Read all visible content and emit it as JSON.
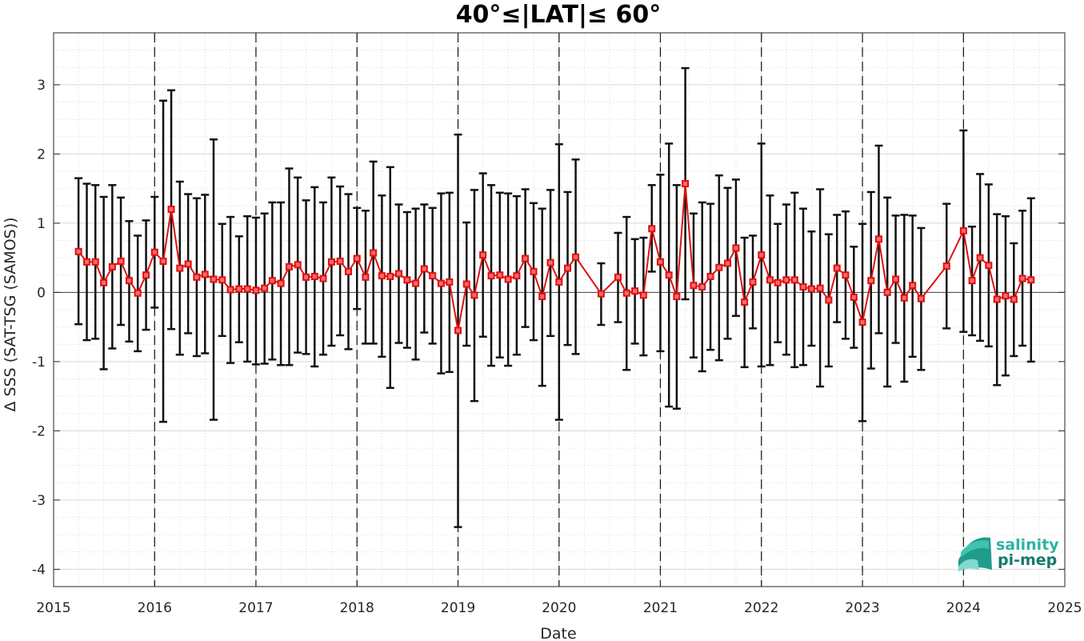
{
  "chart_data": {
    "type": "line",
    "title": "40°≤|LAT|≤ 60°",
    "xlabel": "Date",
    "ylabel": "Δ SSS (SAT-TSG (SAMOS))",
    "xlim": [
      "2015-01-01",
      "2025-01-01"
    ],
    "ylim": [
      -4.25,
      3.75
    ],
    "x_ticks": [
      "2015",
      "2016",
      "2017",
      "2018",
      "2019",
      "2020",
      "2021",
      "2022",
      "2023",
      "2024",
      "2025"
    ],
    "y_ticks": [
      -4,
      -3,
      -2,
      -1,
      0,
      1,
      2,
      3
    ],
    "grid": "minor dotted",
    "reference_line": 0,
    "year_markers": [
      "2016",
      "2017",
      "2018",
      "2019",
      "2020",
      "2021",
      "2022",
      "2023",
      "2024"
    ],
    "colors": {
      "mean": "#dd1111",
      "errorbar": "#111111",
      "zero_line": "#444444"
    },
    "series": [
      {
        "style": "red line with square markers and black error bars (mean ± std)",
        "points": [
          {
            "x": "2015-04",
            "y": 0.59,
            "lo": -0.46,
            "hi": 1.65
          },
          {
            "x": "2015-05",
            "y": 0.44,
            "lo": -0.69,
            "hi": 1.57
          },
          {
            "x": "2015-06",
            "y": 0.44,
            "lo": -0.67,
            "hi": 1.55
          },
          {
            "x": "2015-07",
            "y": 0.14,
            "lo": -1.11,
            "hi": 1.38
          },
          {
            "x": "2015-08",
            "y": 0.37,
            "lo": -0.81,
            "hi": 1.55
          },
          {
            "x": "2015-09",
            "y": 0.45,
            "lo": -0.47,
            "hi": 1.37
          },
          {
            "x": "2015-10",
            "y": 0.17,
            "lo": -0.71,
            "hi": 1.03
          },
          {
            "x": "2015-11",
            "y": -0.01,
            "lo": -0.85,
            "hi": 0.82
          },
          {
            "x": "2015-12",
            "y": 0.25,
            "lo": -0.54,
            "hi": 1.04
          },
          {
            "x": "2016-01",
            "y": 0.58,
            "lo": -0.22,
            "hi": 1.38
          },
          {
            "x": "2016-02",
            "y": 0.45,
            "lo": -1.87,
            "hi": 2.77
          },
          {
            "x": "2016-03",
            "y": 1.2,
            "lo": -0.53,
            "hi": 2.92
          },
          {
            "x": "2016-04",
            "y": 0.35,
            "lo": -0.9,
            "hi": 1.6
          },
          {
            "x": "2016-05",
            "y": 0.41,
            "lo": -0.59,
            "hi": 1.42
          },
          {
            "x": "2016-06",
            "y": 0.22,
            "lo": -0.92,
            "hi": 1.36
          },
          {
            "x": "2016-07",
            "y": 0.26,
            "lo": -0.88,
            "hi": 1.41
          },
          {
            "x": "2016-08",
            "y": 0.19,
            "lo": -1.84,
            "hi": 2.21
          },
          {
            "x": "2016-09",
            "y": 0.18,
            "lo": -0.63,
            "hi": 0.99
          },
          {
            "x": "2016-10",
            "y": 0.04,
            "lo": -1.02,
            "hi": 1.09
          },
          {
            "x": "2016-11",
            "y": 0.05,
            "lo": -0.72,
            "hi": 0.81
          },
          {
            "x": "2016-12",
            "y": 0.05,
            "lo": -1.0,
            "hi": 1.1
          },
          {
            "x": "2017-01",
            "y": 0.03,
            "lo": -1.04,
            "hi": 1.08
          },
          {
            "x": "2017-02",
            "y": 0.06,
            "lo": -1.03,
            "hi": 1.14
          },
          {
            "x": "2017-03",
            "y": 0.17,
            "lo": -0.97,
            "hi": 1.3
          },
          {
            "x": "2017-04",
            "y": 0.13,
            "lo": -1.05,
            "hi": 1.3
          },
          {
            "x": "2017-05",
            "y": 0.37,
            "lo": -1.05,
            "hi": 1.79
          },
          {
            "x": "2017-06",
            "y": 0.4,
            "lo": -0.87,
            "hi": 1.66
          },
          {
            "x": "2017-07",
            "y": 0.22,
            "lo": -0.89,
            "hi": 1.33
          },
          {
            "x": "2017-08",
            "y": 0.23,
            "lo": -1.07,
            "hi": 1.52
          },
          {
            "x": "2017-09",
            "y": 0.2,
            "lo": -0.9,
            "hi": 1.3
          },
          {
            "x": "2017-10",
            "y": 0.44,
            "lo": -0.77,
            "hi": 1.66
          },
          {
            "x": "2017-11",
            "y": 0.45,
            "lo": -0.62,
            "hi": 1.53
          },
          {
            "x": "2017-12",
            "y": 0.3,
            "lo": -0.82,
            "hi": 1.42
          },
          {
            "x": "2018-01",
            "y": 0.49,
            "lo": -0.24,
            "hi": 1.22
          },
          {
            "x": "2018-02",
            "y": 0.22,
            "lo": -0.74,
            "hi": 1.18
          },
          {
            "x": "2018-03",
            "y": 0.57,
            "lo": -0.74,
            "hi": 1.89
          },
          {
            "x": "2018-04",
            "y": 0.24,
            "lo": -0.93,
            "hi": 1.4
          },
          {
            "x": "2018-05",
            "y": 0.23,
            "lo": -1.38,
            "hi": 1.81
          },
          {
            "x": "2018-06",
            "y": 0.27,
            "lo": -0.73,
            "hi": 1.27
          },
          {
            "x": "2018-07",
            "y": 0.18,
            "lo": -0.8,
            "hi": 1.16
          },
          {
            "x": "2018-08",
            "y": 0.13,
            "lo": -0.97,
            "hi": 1.21
          },
          {
            "x": "2018-09",
            "y": 0.34,
            "lo": -0.58,
            "hi": 1.27
          },
          {
            "x": "2018-10",
            "y": 0.24,
            "lo": -0.74,
            "hi": 1.22
          },
          {
            "x": "2018-11",
            "y": 0.13,
            "lo": -1.17,
            "hi": 1.43
          },
          {
            "x": "2018-12",
            "y": 0.15,
            "lo": -1.15,
            "hi": 1.44
          },
          {
            "x": "2019-01",
            "y": -0.55,
            "lo": -3.39,
            "hi": 2.28
          },
          {
            "x": "2019-02",
            "y": 0.12,
            "lo": -0.77,
            "hi": 1.01
          },
          {
            "x": "2019-03",
            "y": -0.04,
            "lo": -1.57,
            "hi": 1.48
          },
          {
            "x": "2019-04",
            "y": 0.54,
            "lo": -0.64,
            "hi": 1.72
          },
          {
            "x": "2019-05",
            "y": 0.24,
            "lo": -1.06,
            "hi": 1.55
          },
          {
            "x": "2019-06",
            "y": 0.25,
            "lo": -0.94,
            "hi": 1.44
          },
          {
            "x": "2019-07",
            "y": 0.19,
            "lo": -1.06,
            "hi": 1.43
          },
          {
            "x": "2019-08",
            "y": 0.24,
            "lo": -0.9,
            "hi": 1.39
          },
          {
            "x": "2019-09",
            "y": 0.49,
            "lo": -0.5,
            "hi": 1.49
          },
          {
            "x": "2019-10",
            "y": 0.3,
            "lo": -0.69,
            "hi": 1.29
          },
          {
            "x": "2019-11",
            "y": -0.06,
            "lo": -1.35,
            "hi": 1.21
          },
          {
            "x": "2019-12",
            "y": 0.43,
            "lo": -0.63,
            "hi": 1.48
          },
          {
            "x": "2020-01",
            "y": 0.15,
            "lo": -1.84,
            "hi": 2.14
          },
          {
            "x": "2020-02",
            "y": 0.35,
            "lo": -0.76,
            "hi": 1.45
          },
          {
            "x": "2020-03",
            "y": 0.51,
            "lo": -0.89,
            "hi": 1.92
          },
          {
            "x": "2020-06",
            "y": -0.02,
            "lo": -0.47,
            "hi": 0.42
          },
          {
            "x": "2020-08",
            "y": 0.22,
            "lo": -0.43,
            "hi": 0.86
          },
          {
            "x": "2020-09",
            "y": -0.01,
            "lo": -1.12,
            "hi": 1.09
          },
          {
            "x": "2020-10",
            "y": 0.02,
            "lo": -0.74,
            "hi": 0.77
          },
          {
            "x": "2020-11",
            "y": -0.04,
            "lo": -0.91,
            "hi": 0.79
          },
          {
            "x": "2020-12",
            "y": 0.92,
            "lo": 0.3,
            "hi": 1.55
          },
          {
            "x": "2021-01",
            "y": 0.44,
            "lo": -0.85,
            "hi": 1.7
          },
          {
            "x": "2021-02",
            "y": 0.25,
            "lo": -1.65,
            "hi": 2.15
          },
          {
            "x": "2021-03",
            "y": -0.06,
            "lo": -1.68,
            "hi": 1.55
          },
          {
            "x": "2021-04",
            "y": 1.57,
            "lo": -0.1,
            "hi": 3.24
          },
          {
            "x": "2021-05",
            "y": 0.1,
            "lo": -0.94,
            "hi": 1.14
          },
          {
            "x": "2021-06",
            "y": 0.08,
            "lo": -1.14,
            "hi": 1.3
          },
          {
            "x": "2021-07",
            "y": 0.23,
            "lo": -0.83,
            "hi": 1.28
          },
          {
            "x": "2021-08",
            "y": 0.36,
            "lo": -0.98,
            "hi": 1.69
          },
          {
            "x": "2021-09",
            "y": 0.42,
            "lo": -0.67,
            "hi": 1.51
          },
          {
            "x": "2021-10",
            "y": 0.64,
            "lo": -0.34,
            "hi": 1.63
          },
          {
            "x": "2021-11",
            "y": -0.14,
            "lo": -1.08,
            "hi": 0.79
          },
          {
            "x": "2021-12",
            "y": 0.15,
            "lo": -0.52,
            "hi": 0.82
          },
          {
            "x": "2022-01",
            "y": 0.54,
            "lo": -1.07,
            "hi": 2.15
          },
          {
            "x": "2022-02",
            "y": 0.18,
            "lo": -1.05,
            "hi": 1.4
          },
          {
            "x": "2022-03",
            "y": 0.14,
            "lo": -0.72,
            "hi": 0.99
          },
          {
            "x": "2022-04",
            "y": 0.18,
            "lo": -0.9,
            "hi": 1.27
          },
          {
            "x": "2022-05",
            "y": 0.18,
            "lo": -1.08,
            "hi": 1.44
          },
          {
            "x": "2022-06",
            "y": 0.08,
            "lo": -1.05,
            "hi": 1.21
          },
          {
            "x": "2022-07",
            "y": 0.05,
            "lo": -0.77,
            "hi": 0.88
          },
          {
            "x": "2022-08",
            "y": 0.06,
            "lo": -1.36,
            "hi": 1.49
          },
          {
            "x": "2022-09",
            "y": -0.11,
            "lo": -1.07,
            "hi": 0.84
          },
          {
            "x": "2022-10",
            "y": 0.35,
            "lo": -0.43,
            "hi": 1.12
          },
          {
            "x": "2022-11",
            "y": 0.25,
            "lo": -0.67,
            "hi": 1.17
          },
          {
            "x": "2022-12",
            "y": -0.07,
            "lo": -0.8,
            "hi": 0.66
          },
          {
            "x": "2023-01",
            "y": -0.43,
            "lo": -1.86,
            "hi": 0.99
          },
          {
            "x": "2023-02",
            "y": 0.17,
            "lo": -1.1,
            "hi": 1.45
          },
          {
            "x": "2023-03",
            "y": 0.77,
            "lo": -0.59,
            "hi": 2.12
          },
          {
            "x": "2023-04",
            "y": 0.0,
            "lo": -1.36,
            "hi": 1.37
          },
          {
            "x": "2023-05",
            "y": 0.19,
            "lo": -0.73,
            "hi": 1.11
          },
          {
            "x": "2023-06",
            "y": -0.08,
            "lo": -1.29,
            "hi": 1.12
          },
          {
            "x": "2023-07",
            "y": 0.1,
            "lo": -0.93,
            "hi": 1.11
          },
          {
            "x": "2023-08",
            "y": -0.09,
            "lo": -1.12,
            "hi": 0.93
          },
          {
            "x": "2023-11",
            "y": 0.38,
            "lo": -0.52,
            "hi": 1.28
          },
          {
            "x": "2024-01",
            "y": 0.89,
            "lo": -0.57,
            "hi": 2.34
          },
          {
            "x": "2024-02",
            "y": 0.17,
            "lo": -0.62,
            "hi": 0.95
          },
          {
            "x": "2024-03",
            "y": 0.5,
            "lo": -0.7,
            "hi": 1.71
          },
          {
            "x": "2024-04",
            "y": 0.39,
            "lo": -0.78,
            "hi": 1.56
          },
          {
            "x": "2024-05",
            "y": -0.1,
            "lo": -1.34,
            "hi": 1.13
          },
          {
            "x": "2024-06",
            "y": -0.05,
            "lo": -1.2,
            "hi": 1.1
          },
          {
            "x": "2024-07",
            "y": -0.1,
            "lo": -0.92,
            "hi": 0.71
          },
          {
            "x": "2024-08",
            "y": 0.2,
            "lo": -0.77,
            "hi": 1.18
          },
          {
            "x": "2024-09",
            "y": 0.18,
            "lo": -1.0,
            "hi": 1.36
          }
        ]
      }
    ]
  },
  "logo": {
    "line1": "salinity",
    "line2": "pi-mep",
    "icon": "salinity-wave-icon",
    "color_line1": "#2bb3a3",
    "color_line2": "#167a6e"
  }
}
